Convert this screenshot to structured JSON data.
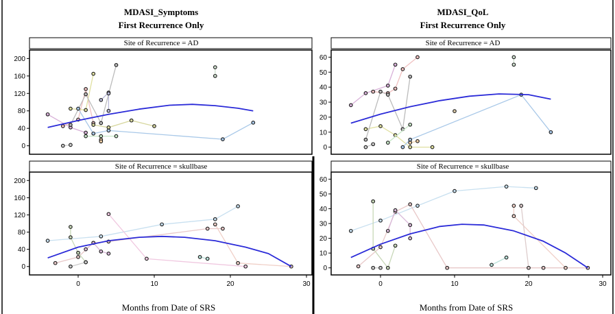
{
  "colors": {
    "fit_curve": "#2a2ad8",
    "strip_fill": "#ffffff",
    "point_edge": "#1a1a1a",
    "divider": "#000000"
  },
  "chart_data": [
    {
      "type": "scatter",
      "title": "MDASI_Symptoms",
      "subtitle": "First Recurrence Only",
      "xlabel": "Months from Date of SRS",
      "ylabel": "",
      "xlim": [
        -5,
        30
      ],
      "xticks": [
        0,
        10,
        20,
        30
      ],
      "panels": [
        {
          "label": "Site of Recurrence = AD",
          "ylim": [
            -10,
            210
          ],
          "yticks": [
            0,
            40,
            80,
            120,
            160,
            200
          ],
          "fit": [
            [
              -4,
              42
            ],
            [
              0,
              58
            ],
            [
              4,
              72
            ],
            [
              8,
              84
            ],
            [
              12,
              93
            ],
            [
              15,
              95
            ],
            [
              18,
              92
            ],
            [
              21,
              86
            ],
            [
              23,
              80
            ]
          ],
          "trajectories": [
            {
              "color": "#d8b0d8",
              "points": [
                [
                  -4,
                  72
                ],
                [
                  -1,
                  42
                ],
                [
                  1,
                  30
                ]
              ]
            },
            {
              "color": "#cccccc",
              "points": [
                [
                  -2,
                  0
                ],
                [
                  -1,
                  2
                ]
              ]
            },
            {
              "color": "#f0c0c0",
              "points": [
                [
                  -2,
                  45
                ],
                [
                  0,
                  60
                ],
                [
                  1,
                  130
                ],
                [
                  2,
                  52
                ]
              ]
            },
            {
              "color": "#e0e0a0",
              "points": [
                [
                  -1,
                  85
                ],
                [
                  1,
                  82
                ],
                [
                  2,
                  165
                ]
              ]
            },
            {
              "color": "#bbbbbb",
              "points": [
                [
                  -1,
                  48
                ],
                [
                  1,
                  118
                ],
                [
                  3,
                  52
                ],
                [
                  5,
                  185
                ]
              ]
            },
            {
              "color": "#a8c8e8",
              "points": [
                [
                  0,
                  85
                ],
                [
                  2,
                  28
                ],
                [
                  4,
                  35
                ],
                [
                  19,
                  15
                ],
                [
                  23,
                  53
                ]
              ]
            },
            {
              "color": "#d8d8a0",
              "points": [
                [
                  2,
                  48
                ],
                [
                  4,
                  42
                ],
                [
                  7,
                  58
                ],
                [
                  10,
                  45
                ]
              ]
            },
            {
              "color": "#c8e8c8",
              "points": [
                [
                  1,
                  22
                ],
                [
                  3,
                  22
                ],
                [
                  5,
                  22
                ]
              ]
            },
            {
              "color": "#f0d0a8",
              "points": [
                [
                  3,
                  14
                ],
                [
                  3,
                  10
                ]
              ]
            },
            {
              "color": "#b8b8d8",
              "points": [
                [
                  3,
                  105
                ],
                [
                  4,
                  122
                ],
                [
                  4,
                  80
                ],
                [
                  4,
                  120
                ]
              ]
            },
            {
              "color": "#ccddcc",
              "points": [
                [
                  18,
                  160
                ],
                [
                  18,
                  180
                ]
              ]
            }
          ]
        },
        {
          "label": "Site of Recurrence = skullbase",
          "ylim": [
            -10,
            210
          ],
          "yticks": [
            0,
            40,
            80,
            120,
            160,
            200
          ],
          "fit": [
            [
              -4,
              20
            ],
            [
              0,
              45
            ],
            [
              4,
              60
            ],
            [
              8,
              68
            ],
            [
              11,
              70
            ],
            [
              14,
              68
            ],
            [
              18,
              60
            ],
            [
              22,
              45
            ],
            [
              25,
              30
            ],
            [
              28,
              0
            ]
          ],
          "trajectories": [
            {
              "color": "#c8e0f0",
              "points": [
                [
                  -4,
                  60
                ],
                [
                  3,
                  70
                ],
                [
                  11,
                  98
                ],
                [
                  18,
                  110
                ],
                [
                  21,
                  140
                ]
              ]
            },
            {
              "color": "#e8c8c8",
              "points": [
                [
                  -3,
                  8
                ],
                [
                  0,
                  22
                ],
                [
                  2,
                  55
                ],
                [
                  4,
                  58
                ],
                [
                  17,
                  88
                ],
                [
                  19,
                  88
                ]
              ]
            },
            {
              "color": "#c8d8b8",
              "points": [
                [
                  -1,
                  92
                ],
                [
                  -1,
                  68
                ],
                [
                  0,
                  32
                ],
                [
                  1,
                  10
                ]
              ]
            },
            {
              "color": "#f0c8e0",
              "points": [
                [
                  4,
                  122
                ],
                [
                  9,
                  18
                ],
                [
                  22,
                  0
                ]
              ]
            },
            {
              "color": "#d8b8d8",
              "points": [
                [
                  1,
                  40
                ],
                [
                  2,
                  55
                ],
                [
                  3,
                  35
                ],
                [
                  4,
                  30
                ]
              ]
            },
            {
              "color": "#f0d0c8",
              "points": [
                [
                  18,
                  98
                ],
                [
                  21,
                  8
                ],
                [
                  28,
                  0
                ]
              ]
            },
            {
              "color": "#b8e0d8",
              "points": [
                [
                  16,
                  22
                ],
                [
                  17,
                  18
                ]
              ]
            },
            {
              "color": "#cccccc",
              "points": [
                [
                  -1,
                  0
                ],
                [
                  1,
                  10
                ]
              ]
            }
          ]
        }
      ]
    },
    {
      "type": "scatter",
      "title": "MDASI_QoL",
      "subtitle": "First Recurrence Only",
      "xlabel": "Months from Date of SRS",
      "ylabel": "",
      "xlim": [
        -5,
        30
      ],
      "xticks": [
        0,
        10,
        20,
        30
      ],
      "panels": [
        {
          "label": "Site of Recurrence = AD",
          "ylim": [
            -2,
            62
          ],
          "yticks": [
            0,
            10,
            20,
            30,
            40,
            50,
            60
          ],
          "fit": [
            [
              -4,
              16
            ],
            [
              0,
              22
            ],
            [
              4,
              27
            ],
            [
              8,
              31
            ],
            [
              12,
              34
            ],
            [
              16,
              35.5
            ],
            [
              20,
              35
            ],
            [
              23,
              32
            ]
          ],
          "trajectories": [
            {
              "color": "#d8b0d8",
              "points": [
                [
                  -4,
                  28
                ],
                [
                  -2,
                  36
                ],
                [
                  1,
                  41
                ],
                [
                  2,
                  55
                ]
              ]
            },
            {
              "color": "#cccccc",
              "points": [
                [
                  -2,
                  0
                ],
                [
                  -1,
                  2
                ]
              ]
            },
            {
              "color": "#f0c0c0",
              "points": [
                [
                  -1,
                  37
                ],
                [
                  1,
                  36
                ],
                [
                  2,
                  39
                ],
                [
                  3,
                  52
                ],
                [
                  5,
                  60
                ]
              ]
            },
            {
              "color": "#e0e0a0",
              "points": [
                [
                  -2,
                  12
                ],
                [
                  0,
                  14
                ],
                [
                  2,
                  8
                ],
                [
                  4,
                  0
                ],
                [
                  7,
                  0
                ]
              ]
            },
            {
              "color": "#bbbbbb",
              "points": [
                [
                  -2,
                  5
                ],
                [
                  0,
                  37
                ],
                [
                  1,
                  35
                ],
                [
                  3,
                  12
                ],
                [
                  4,
                  47
                ]
              ]
            },
            {
              "color": "#a8c8e8",
              "points": [
                [
                  3,
                  0
                ],
                [
                  4,
                  5
                ],
                [
                  19,
                  35
                ],
                [
                  23,
                  10
                ]
              ]
            },
            {
              "color": "#c8e8c8",
              "points": [
                [
                  1,
                  3
                ],
                [
                  4,
                  15
                ]
              ]
            },
            {
              "color": "#f0d0a8",
              "points": [
                [
                  4,
                  3
                ],
                [
                  5,
                  4
                ]
              ]
            },
            {
              "color": "#ddccaa",
              "points": [
                [
                  10,
                  24
                ]
              ]
            },
            {
              "color": "#ccddcc",
              "points": [
                [
                  18,
                  55
                ],
                [
                  18,
                  60
                ]
              ]
            }
          ]
        },
        {
          "label": "Site of Recurrence = skullbase",
          "ylim": [
            -2,
            62
          ],
          "yticks": [
            0,
            10,
            20,
            30,
            40,
            50,
            60
          ],
          "fit": [
            [
              -4,
              7
            ],
            [
              0,
              16
            ],
            [
              4,
              23
            ],
            [
              8,
              28
            ],
            [
              11,
              29.5
            ],
            [
              14,
              29
            ],
            [
              18,
              25
            ],
            [
              22,
              18
            ],
            [
              25,
              10
            ],
            [
              28,
              0
            ]
          ],
          "trajectories": [
            {
              "color": "#c8e0f0",
              "points": [
                [
                  -4,
                  25
                ],
                [
                  0,
                  32
                ],
                [
                  5,
                  42
                ],
                [
                  10,
                  52
                ],
                [
                  17,
                  55
                ],
                [
                  21,
                  54
                ]
              ]
            },
            {
              "color": "#e8c8c8",
              "points": [
                [
                  -3,
                  1
                ],
                [
                  0,
                  14
                ],
                [
                  2,
                  38
                ],
                [
                  4,
                  43
                ],
                [
                  9,
                  0
                ],
                [
                  22,
                  0
                ],
                [
                  28,
                  0
                ]
              ]
            },
            {
              "color": "#c8d8b8",
              "points": [
                [
                  -1,
                  45
                ],
                [
                  -1,
                  13
                ],
                [
                  1,
                  0
                ],
                [
                  2,
                  15
                ]
              ]
            },
            {
              "color": "#d8b8d8",
              "points": [
                [
                  1,
                  25
                ],
                [
                  2,
                  39
                ],
                [
                  4,
                  29
                ],
                [
                  4,
                  20
                ]
              ]
            },
            {
              "color": "#f0d0c8",
              "points": [
                [
                  18,
                  42
                ],
                [
                  18,
                  35
                ],
                [
                  25,
                  0
                ]
              ]
            },
            {
              "color": "#b8e0d8",
              "points": [
                [
                  15,
                  2
                ],
                [
                  17,
                  7
                ]
              ]
            },
            {
              "color": "#ddcccc",
              "points": [
                [
                  19,
                  42
                ],
                [
                  20,
                  0
                ]
              ]
            },
            {
              "color": "#cccccc",
              "points": [
                [
                  -1,
                  0
                ],
                [
                  0,
                  0
                ]
              ]
            }
          ]
        }
      ]
    }
  ]
}
